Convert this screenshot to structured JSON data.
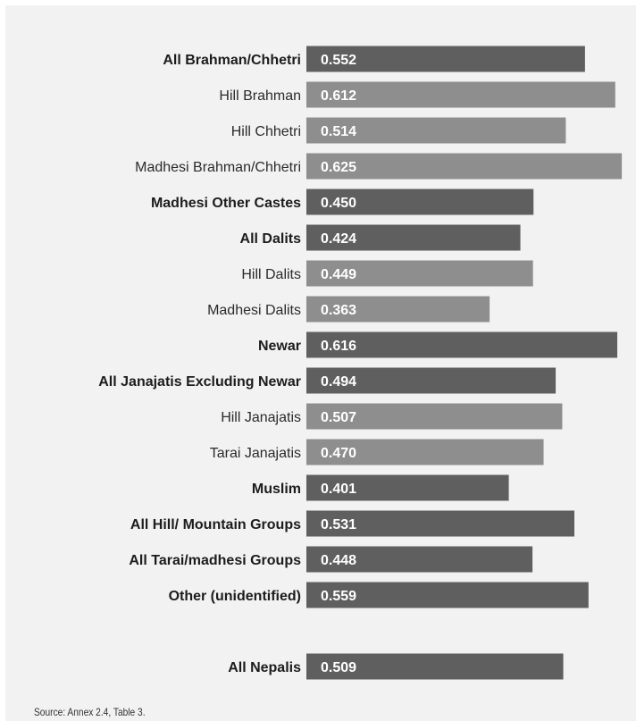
{
  "chart_data": {
    "type": "bar",
    "orientation": "horizontal",
    "title": "",
    "xlabel": "",
    "ylabel": "",
    "grid": false,
    "categories": [
      "All Brahman/Chhetri",
      "Hill Brahman",
      "Hill Chhetri",
      "Madhesi Brahman/Chhetri",
      "Madhesi Other Castes",
      "All Dalits",
      "Hill Dalits",
      "Madhesi Dalits",
      "Newar",
      "All Janajatis Excluding Newar",
      "Hill Janajatis",
      "Tarai Janajatis",
      "Muslim",
      "All Hill/ Mountain Groups",
      "All Tarai/madhesi Groups",
      "Other (unidentified)",
      "All Nepalis"
    ],
    "values": [
      0.552,
      0.612,
      0.514,
      0.625,
      0.45,
      0.424,
      0.449,
      0.363,
      0.616,
      0.494,
      0.507,
      0.47,
      0.401,
      0.531,
      0.448,
      0.559,
      0.509
    ],
    "value_labels": [
      "0.552",
      "0.612",
      "0.514",
      "0.625",
      "0.450",
      "0.424",
      "0.449",
      "0.363",
      "0.616",
      "0.494",
      "0.507",
      "0.470",
      "0.401",
      "0.531",
      "0.448",
      "0.559",
      "0.509"
    ],
    "group_heading": [
      true,
      false,
      false,
      false,
      true,
      true,
      false,
      false,
      true,
      true,
      false,
      false,
      true,
      true,
      true,
      true,
      true
    ],
    "colors": {
      "group_bar": "#5f5f5f",
      "subgroup_bar": "#8e8e8e"
    }
  },
  "source_note": "Source: Annex 2.4, Table 3."
}
